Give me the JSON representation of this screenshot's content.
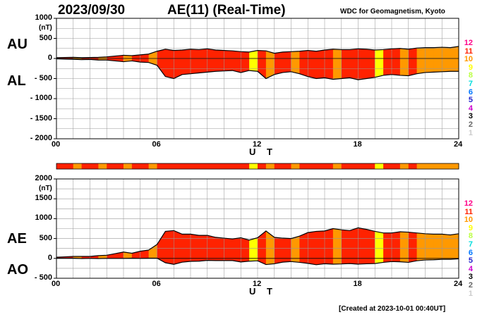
{
  "header": {
    "date": "2023/09/30",
    "title": "AE(11) (Real-Time)",
    "source": "WDC for Geomagnetism, Kyoto"
  },
  "footer": {
    "created": "[Created at 2023-10-01 00:40UT]"
  },
  "activity_levels": [
    "12",
    "11",
    "10",
    "9",
    "8",
    "7",
    "6",
    "5",
    "4",
    "3",
    "2",
    "1"
  ],
  "level_colors": {
    "12": "#ff0088",
    "11": "#ff2200",
    "10": "#ff9900",
    "9": "#ffff00",
    "8": "#bbff44",
    "7": "#00dddd",
    "6": "#0077ff",
    "5": "#2222cc",
    "4": "#cc00cc",
    "3": "#000000",
    "2": "#666666",
    "1": "#cccccc"
  },
  "chart_data": [
    {
      "type": "area",
      "panel": "AU/AL",
      "labels": {
        "upper": "AU",
        "lower": "AL"
      },
      "xlabel": "U T",
      "ylabel_unit": "(nT)",
      "xlim": [
        0,
        24
      ],
      "ylim": [
        -2000,
        1000
      ],
      "xticks": [
        "00",
        "06",
        "12",
        "18",
        "24"
      ],
      "yticks": [
        "1000",
        "500",
        "0",
        "- 500",
        "- 1000",
        "- 1500",
        "- 2000"
      ],
      "grid": true,
      "x": [
        0,
        0.5,
        1,
        1.5,
        2,
        2.5,
        3,
        3.5,
        4,
        4.5,
        5,
        5.5,
        6,
        6.5,
        7,
        7.5,
        8,
        8.5,
        9,
        9.5,
        10,
        10.5,
        11,
        11.5,
        12,
        12.5,
        13,
        13.5,
        14,
        14.5,
        15,
        15.5,
        16,
        16.5,
        17,
        17.5,
        18,
        18.5,
        19,
        19.5,
        20,
        20.5,
        21,
        21.5,
        22,
        22.5,
        23,
        23.5,
        24
      ],
      "series": [
        {
          "name": "AU",
          "values": [
            20,
            25,
            30,
            20,
            25,
            30,
            40,
            60,
            80,
            70,
            90,
            110,
            180,
            230,
            200,
            210,
            230,
            220,
            240,
            210,
            200,
            190,
            170,
            160,
            200,
            190,
            130,
            160,
            170,
            180,
            200,
            180,
            210,
            230,
            220,
            220,
            240,
            230,
            210,
            220,
            240,
            250,
            230,
            260,
            270,
            270,
            280,
            270,
            300
          ]
        },
        {
          "name": "AL",
          "values": [
            -10,
            -15,
            -20,
            -30,
            -25,
            -40,
            -40,
            -60,
            -80,
            -60,
            -90,
            -100,
            -170,
            -450,
            -500,
            -400,
            -380,
            -360,
            -340,
            -320,
            -310,
            -300,
            -350,
            -300,
            -320,
            -500,
            -400,
            -350,
            -330,
            -380,
            -450,
            -500,
            -480,
            -520,
            -500,
            -480,
            -530,
            -500,
            -470,
            -420,
            -400,
            -420,
            -430,
            -380,
            -350,
            -340,
            -330,
            -320,
            -320
          ]
        }
      ]
    },
    {
      "type": "area",
      "panel": "AE/AO",
      "labels": {
        "upper": "AE",
        "lower": "AO"
      },
      "xlabel": "U T",
      "ylabel_unit": "(nT)",
      "xlim": [
        0,
        24
      ],
      "ylim": [
        -500,
        2000
      ],
      "xticks": [
        "00",
        "06",
        "12",
        "18",
        "24"
      ],
      "yticks": [
        "2000",
        "1500",
        "1000",
        "500",
        "0",
        "- 500"
      ],
      "grid": true,
      "x": [
        0,
        0.5,
        1,
        1.5,
        2,
        2.5,
        3,
        3.5,
        4,
        4.5,
        5,
        5.5,
        6,
        6.5,
        7,
        7.5,
        8,
        8.5,
        9,
        9.5,
        10,
        10.5,
        11,
        11.5,
        12,
        12.5,
        13,
        13.5,
        14,
        14.5,
        15,
        15.5,
        16,
        16.5,
        17,
        17.5,
        18,
        18.5,
        19,
        19.5,
        20,
        20.5,
        21,
        21.5,
        22,
        22.5,
        23,
        23.5,
        24
      ],
      "series": [
        {
          "name": "AE",
          "values": [
            30,
            40,
            50,
            50,
            50,
            70,
            80,
            120,
            160,
            130,
            180,
            210,
            350,
            680,
            700,
            610,
            610,
            580,
            580,
            530,
            510,
            490,
            520,
            460,
            520,
            690,
            530,
            510,
            500,
            560,
            650,
            680,
            690,
            750,
            720,
            700,
            770,
            730,
            680,
            640,
            640,
            670,
            660,
            640,
            620,
            610,
            610,
            590,
            620
          ]
        },
        {
          "name": "AO",
          "values": [
            5,
            5,
            5,
            -5,
            0,
            -5,
            0,
            0,
            0,
            5,
            0,
            5,
            5,
            -110,
            -150,
            -95,
            -75,
            -70,
            -50,
            -55,
            -55,
            -55,
            -90,
            -70,
            -60,
            -155,
            -135,
            -95,
            -80,
            -100,
            -125,
            -160,
            -135,
            -145,
            -140,
            -130,
            -145,
            -135,
            -130,
            -100,
            -80,
            -85,
            -100,
            -60,
            -40,
            -35,
            -25,
            -25,
            -10
          ]
        }
      ]
    },
    {
      "type": "heatmap",
      "panel": "activity-strip",
      "x": [
        0,
        0.5,
        1,
        1.5,
        2,
        2.5,
        3,
        3.5,
        4,
        4.5,
        5,
        5.5,
        6,
        6.5,
        7,
        7.5,
        8,
        8.5,
        9,
        9.5,
        10,
        10.5,
        11,
        11.5,
        12,
        12.5,
        13,
        13.5,
        14,
        14.5,
        15,
        15.5,
        16,
        16.5,
        17,
        17.5,
        18,
        18.5,
        19,
        19.5,
        20,
        20.5,
        21,
        21.5,
        22,
        22.5,
        23,
        23.5
      ],
      "levels": [
        11,
        11,
        10,
        11,
        11,
        10,
        11,
        11,
        10,
        11,
        11,
        10,
        11,
        11,
        11,
        11,
        11,
        11,
        11,
        11,
        11,
        11,
        11,
        9,
        11,
        10,
        11,
        11,
        10,
        11,
        11,
        11,
        11,
        10,
        11,
        11,
        11,
        11,
        9,
        11,
        11,
        10,
        11,
        10,
        10,
        10,
        10,
        10
      ]
    }
  ]
}
